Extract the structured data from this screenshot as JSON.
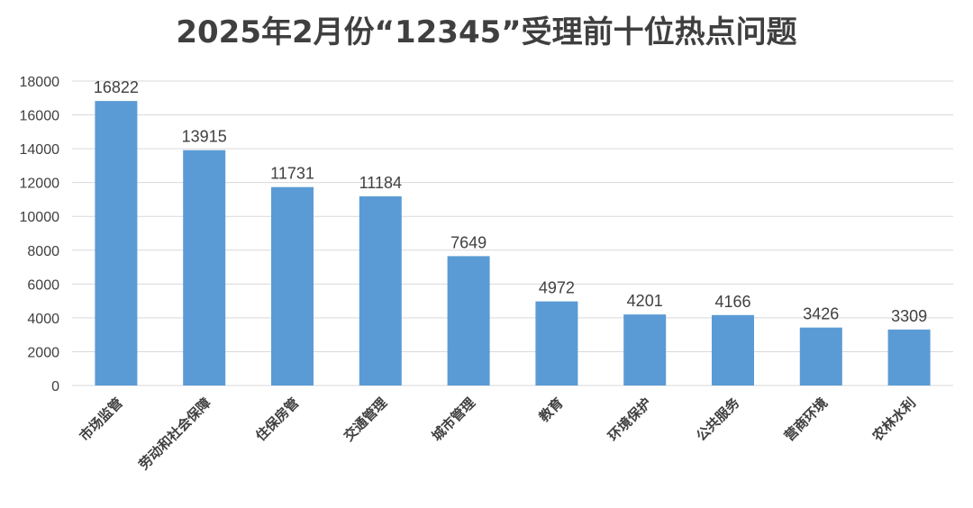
{
  "chart_data": {
    "type": "bar",
    "title": "2025年2月份“12345”受理前十位热点问题",
    "categories": [
      "市场监管",
      "劳动和社会保障",
      "住保房管",
      "交通管理",
      "城市管理",
      "教育",
      "环境保护",
      "公共服务",
      "营商环境",
      "农林水利"
    ],
    "values": [
      16822,
      13915,
      11731,
      11184,
      7649,
      4972,
      4201,
      4166,
      3426,
      3309
    ],
    "ylim": [
      0,
      18000
    ],
    "yticks": [
      0,
      2000,
      4000,
      6000,
      8000,
      10000,
      12000,
      14000,
      16000,
      18000
    ],
    "grid": true,
    "legend": "none",
    "bar_color": "#5b9bd5",
    "grid_color": "#d9d9d9"
  }
}
